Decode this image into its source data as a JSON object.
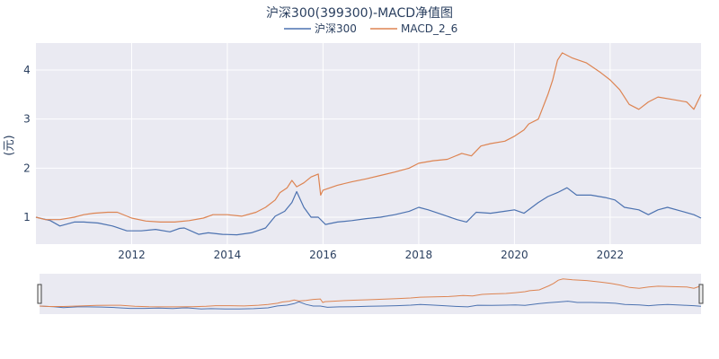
{
  "chart_data": {
    "type": "line",
    "title": "沪深300(399300)-MACD净值图",
    "ylabel": "(元)",
    "xlabel": "",
    "ylim": [
      0.45,
      4.55
    ],
    "xlim": [
      2010.0,
      2023.9
    ],
    "grid": true,
    "legend_placement": "top-center",
    "x_ticks": [
      2012,
      2014,
      2016,
      2018,
      2020,
      2022
    ],
    "x_tick_labels": [
      "2012",
      "2014",
      "2016",
      "2018",
      "2020",
      "2022"
    ],
    "y_ticks": [
      1,
      2,
      3,
      4
    ],
    "y_tick_labels": [
      "1",
      "2",
      "3",
      "4"
    ],
    "has_range_slider": true,
    "series": [
      {
        "name": "沪深300",
        "color": "#4c72b0",
        "x": [
          2010.0,
          2010.3,
          2010.5,
          2010.8,
          2011.0,
          2011.3,
          2011.6,
          2011.9,
          2012.2,
          2012.5,
          2012.8,
          2013.0,
          2013.1,
          2013.4,
          2013.6,
          2013.9,
          2014.2,
          2014.5,
          2014.8,
          2015.0,
          2015.2,
          2015.35,
          2015.45,
          2015.6,
          2015.75,
          2015.9,
          2016.05,
          2016.3,
          2016.6,
          2016.9,
          2017.2,
          2017.5,
          2017.8,
          2018.0,
          2018.2,
          2018.5,
          2018.8,
          2019.0,
          2019.2,
          2019.5,
          2019.8,
          2020.0,
          2020.2,
          2020.5,
          2020.7,
          2020.9,
          2021.1,
          2021.3,
          2021.6,
          2021.9,
          2022.1,
          2022.3,
          2022.6,
          2022.8,
          2023.0,
          2023.2,
          2023.5,
          2023.75,
          2023.9
        ],
        "values": [
          1.0,
          0.93,
          0.82,
          0.9,
          0.9,
          0.88,
          0.82,
          0.72,
          0.72,
          0.75,
          0.7,
          0.77,
          0.78,
          0.65,
          0.68,
          0.65,
          0.64,
          0.68,
          0.78,
          1.02,
          1.12,
          1.3,
          1.52,
          1.2,
          1.0,
          1.0,
          0.85,
          0.9,
          0.93,
          0.97,
          1.0,
          1.05,
          1.12,
          1.2,
          1.15,
          1.05,
          0.95,
          0.9,
          1.1,
          1.08,
          1.12,
          1.15,
          1.08,
          1.3,
          1.42,
          1.5,
          1.6,
          1.45,
          1.45,
          1.4,
          1.35,
          1.2,
          1.15,
          1.05,
          1.15,
          1.2,
          1.12,
          1.05,
          0.98
        ]
      },
      {
        "name": "MACD_2_6",
        "color": "#dd8452",
        "x": [
          2010.0,
          2010.2,
          2010.5,
          2010.8,
          2011.0,
          2011.2,
          2011.5,
          2011.7,
          2012.0,
          2012.3,
          2012.6,
          2012.9,
          2013.2,
          2013.5,
          2013.7,
          2014.0,
          2014.3,
          2014.6,
          2014.8,
          2015.0,
          2015.1,
          2015.25,
          2015.35,
          2015.45,
          2015.6,
          2015.75,
          2015.9,
          2015.95,
          2016.0,
          2016.3,
          2016.6,
          2016.9,
          2017.2,
          2017.5,
          2017.8,
          2018.0,
          2018.3,
          2018.6,
          2018.9,
          2019.1,
          2019.3,
          2019.5,
          2019.8,
          2020.0,
          2020.2,
          2020.3,
          2020.5,
          2020.7,
          2020.8,
          2020.9,
          2021.0,
          2021.2,
          2021.5,
          2021.8,
          2022.0,
          2022.2,
          2022.4,
          2022.6,
          2022.8,
          2023.0,
          2023.3,
          2023.6,
          2023.75,
          2023.9
        ],
        "values": [
          1.0,
          0.95,
          0.95,
          1.0,
          1.05,
          1.08,
          1.1,
          1.1,
          0.98,
          0.92,
          0.9,
          0.9,
          0.93,
          0.98,
          1.05,
          1.05,
          1.02,
          1.1,
          1.2,
          1.35,
          1.5,
          1.6,
          1.75,
          1.62,
          1.7,
          1.82,
          1.88,
          1.45,
          1.55,
          1.65,
          1.72,
          1.78,
          1.85,
          1.92,
          2.0,
          2.1,
          2.15,
          2.18,
          2.3,
          2.25,
          2.45,
          2.5,
          2.55,
          2.65,
          2.78,
          2.9,
          3.0,
          3.5,
          3.8,
          4.2,
          4.35,
          4.25,
          4.15,
          3.95,
          3.8,
          3.6,
          3.3,
          3.2,
          3.35,
          3.45,
          3.4,
          3.35,
          3.2,
          3.5
        ]
      }
    ]
  }
}
